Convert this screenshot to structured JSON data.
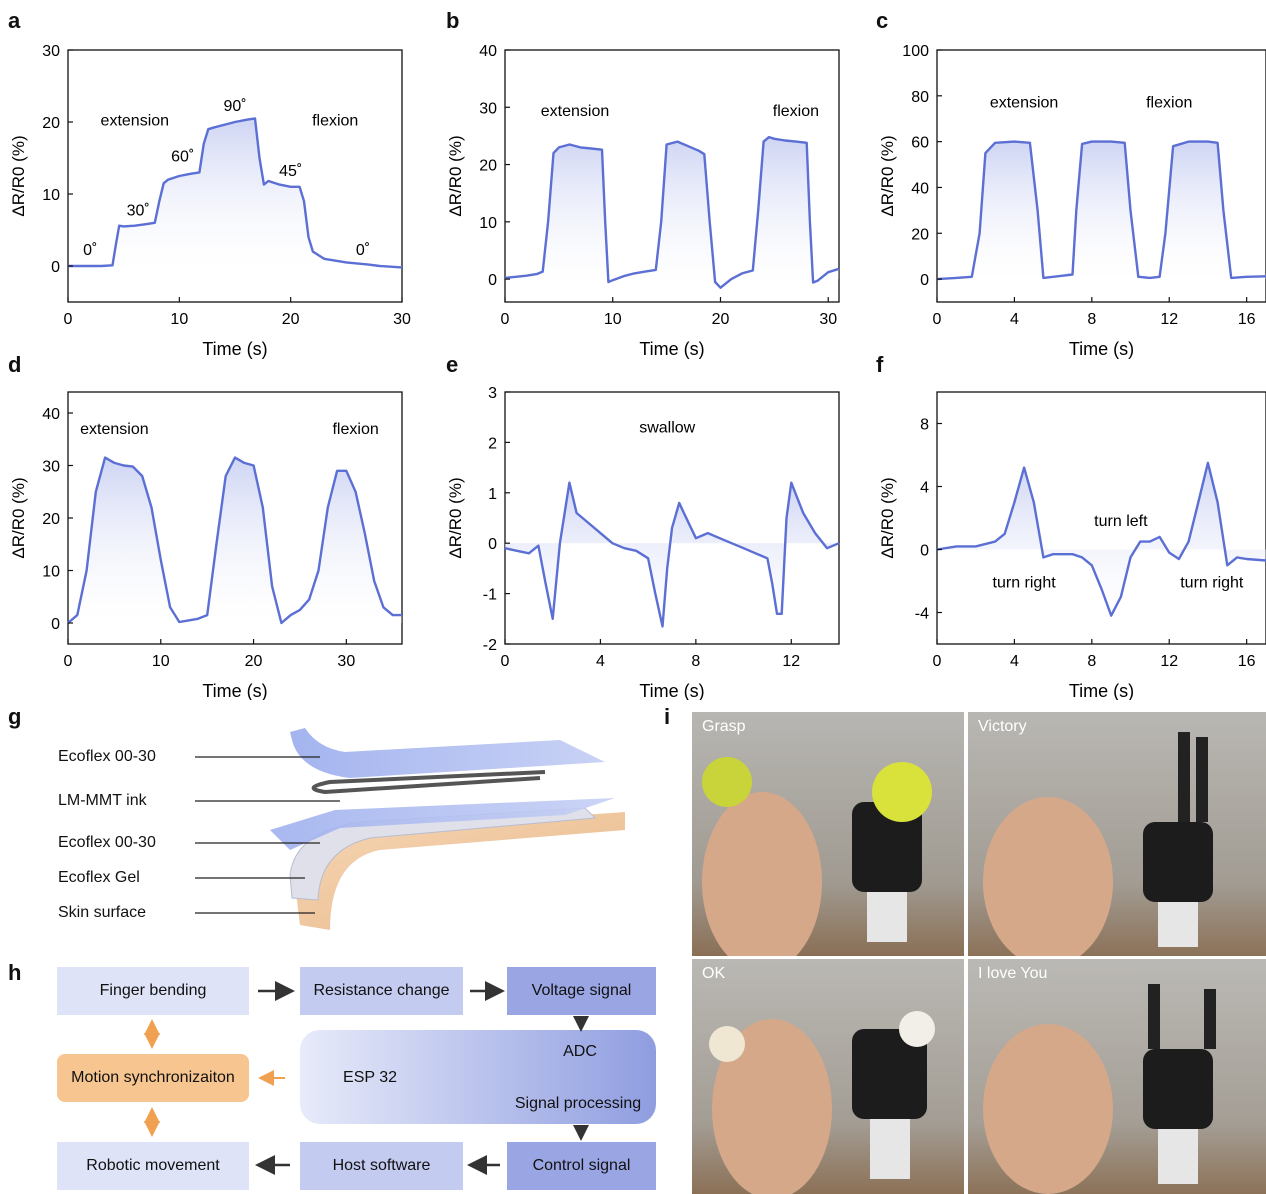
{
  "panel_labels": [
    "a",
    "b",
    "c",
    "d",
    "e",
    "f",
    "g",
    "h",
    "i"
  ],
  "colors": {
    "line": "#5b6fd4",
    "fill": "#c9d0f2",
    "box": "#c7cdee",
    "box_dark": "#8e9be0",
    "orange": "#f7c58f",
    "arrow_orange": "#f0a050"
  },
  "chart_data": [
    {
      "type": "line",
      "panel": "a",
      "xlabel": "Time (s)",
      "ylabel": "ΔR/R0 (%)",
      "xlim": [
        0,
        30
      ],
      "ylim": [
        -5,
        30
      ],
      "xticks": [
        0,
        10,
        20,
        30
      ],
      "yticks": [
        0,
        10,
        20,
        30
      ],
      "x": [
        0,
        1,
        2,
        3,
        4,
        4.3,
        4.6,
        5,
        6,
        7,
        7.8,
        8.2,
        8.6,
        9,
        10,
        11,
        11.8,
        12.2,
        12.6,
        13,
        14,
        15,
        16,
        16.8,
        17.2,
        17.6,
        18,
        19,
        20,
        20.8,
        21.2,
        21.6,
        22,
        23,
        25,
        27,
        28,
        30
      ],
      "y": [
        0,
        0,
        0,
        0,
        0.1,
        3,
        5.6,
        5.5,
        5.6,
        5.8,
        6,
        9,
        11.5,
        12,
        12.5,
        12.8,
        13,
        17,
        19,
        19.2,
        19.6,
        20,
        20.3,
        20.5,
        15,
        11.3,
        11.8,
        11.3,
        11,
        11,
        9,
        4,
        2,
        1,
        0.5,
        0.2,
        0,
        -0.2
      ],
      "annotations": [
        {
          "text": "0˚",
          "x": 2,
          "y": 1.5
        },
        {
          "text": "30˚",
          "x": 6.3,
          "y": 7
        },
        {
          "text": "60˚",
          "x": 10.3,
          "y": 14.5
        },
        {
          "text": "90˚",
          "x": 15,
          "y": 21.5
        },
        {
          "text": "45˚",
          "x": 20,
          "y": 12.5
        },
        {
          "text": "0˚",
          "x": 26.5,
          "y": 1.5
        },
        {
          "text": "extension",
          "x": 6,
          "y": 19.5
        },
        {
          "text": "flexion",
          "x": 24,
          "y": 19.5
        }
      ]
    },
    {
      "type": "line",
      "panel": "b",
      "xlabel": "Time (s)",
      "ylabel": "ΔR/R0 (%)",
      "xlim": [
        0,
        31
      ],
      "ylim": [
        -4,
        40
      ],
      "xticks": [
        0,
        10,
        20,
        30
      ],
      "yticks": [
        0,
        10,
        20,
        30,
        40
      ],
      "x": [
        0,
        1,
        2,
        3,
        3.5,
        4,
        4.5,
        5,
        6,
        7,
        8,
        9,
        9.3,
        9.6,
        10,
        11,
        12,
        13,
        14,
        14.5,
        15,
        16,
        17,
        18,
        18.5,
        19,
        19.5,
        20,
        21,
        22,
        23,
        23.5,
        24,
        24.5,
        25,
        26,
        27,
        28,
        28.3,
        28.6,
        29,
        30,
        31
      ],
      "y": [
        0.2,
        0.4,
        0.6,
        0.9,
        1.3,
        10,
        22,
        23,
        23.5,
        23,
        22.8,
        22.6,
        10,
        -0.5,
        -0.2,
        0.5,
        1,
        1.3,
        1.6,
        10,
        23.5,
        24,
        23.2,
        22.4,
        21.8,
        10,
        -0.5,
        -1.5,
        0,
        1,
        1.5,
        12,
        24,
        24.8,
        24.5,
        24.2,
        24,
        23.8,
        10,
        -0.6,
        -0.3,
        1.2,
        1.8
      ],
      "annotations": [
        {
          "text": "extension",
          "x": 6.5,
          "y": 28.5
        },
        {
          "text": "flexion",
          "x": 27,
          "y": 28.5
        }
      ]
    },
    {
      "type": "line",
      "panel": "c",
      "xlabel": "Time (s)",
      "ylabel": "ΔR/R0 (%)",
      "xlim": [
        0,
        17
      ],
      "ylim": [
        -10,
        100
      ],
      "xticks": [
        0,
        4,
        8,
        12,
        16
      ],
      "yticks": [
        0,
        20,
        40,
        60,
        80,
        100
      ],
      "x": [
        0,
        1,
        1.8,
        2.2,
        2.5,
        3,
        4,
        4.8,
        5.2,
        5.5,
        6,
        6.5,
        7,
        7.2,
        7.5,
        8,
        9,
        9.7,
        10,
        10.4,
        11,
        11.5,
        11.8,
        12.2,
        13,
        14,
        14.5,
        14.8,
        15.2,
        16,
        17
      ],
      "y": [
        0,
        0.5,
        1,
        20,
        55,
        59.5,
        60,
        59.5,
        30,
        0.5,
        1,
        1.5,
        2,
        30,
        59,
        60,
        60,
        59.5,
        30,
        1,
        0.5,
        1,
        20,
        58,
        60,
        60,
        59.5,
        30,
        0.5,
        1,
        1.2
      ],
      "annotations": [
        {
          "text": "extension",
          "x": 4.5,
          "y": 75
        },
        {
          "text": "flexion",
          "x": 12,
          "y": 75
        }
      ]
    },
    {
      "type": "line",
      "panel": "d",
      "xlabel": "Time (s)",
      "ylabel": "ΔR/R0 (%)",
      "xlim": [
        0,
        36
      ],
      "ylim": [
        -4,
        44
      ],
      "xticks": [
        0,
        10,
        20,
        30
      ],
      "yticks": [
        0,
        10,
        20,
        30,
        40
      ],
      "x": [
        0,
        1,
        2,
        3,
        4,
        5,
        6,
        7,
        8,
        9,
        10,
        11,
        12,
        13,
        14,
        15,
        16,
        17,
        18,
        19,
        20,
        21,
        22,
        23,
        24,
        25,
        26,
        27,
        28,
        29,
        30,
        31,
        32,
        33,
        34,
        35,
        36
      ],
      "y": [
        0,
        1.5,
        10,
        25,
        31.5,
        30.5,
        30,
        29.8,
        28,
        22,
        12,
        3,
        0.2,
        0.5,
        0.8,
        1.5,
        15,
        28,
        31.5,
        30.5,
        30,
        22,
        7,
        0,
        1.5,
        2.5,
        4.5,
        10,
        22,
        29,
        29,
        25,
        17,
        8,
        3,
        1.5,
        1.5
      ],
      "annotations": [
        {
          "text": "extension",
          "x": 5,
          "y": 36
        },
        {
          "text": "flexion",
          "x": 31,
          "y": 36
        }
      ]
    },
    {
      "type": "line",
      "panel": "e",
      "xlabel": "Time (s)",
      "ylabel": "ΔR/R0 (%)",
      "xlim": [
        0,
        14
      ],
      "ylim": [
        -2,
        3
      ],
      "xticks": [
        0,
        4,
        8,
        12
      ],
      "yticks": [
        -2,
        -1,
        0,
        1,
        2,
        3
      ],
      "x": [
        0,
        0.5,
        1,
        1.4,
        1.7,
        2,
        2.3,
        2.7,
        3,
        3.5,
        4,
        4.5,
        5,
        5.5,
        6,
        6.3,
        6.6,
        6.8,
        7,
        7.3,
        7.5,
        8,
        8.5,
        9,
        9.5,
        10,
        10.5,
        11,
        11.2,
        11.4,
        11.6,
        11.8,
        12,
        12.5,
        13,
        13.5,
        14
      ],
      "y": [
        -0.1,
        -0.15,
        -0.2,
        -0.05,
        -0.8,
        -1.5,
        0,
        1.2,
        0.6,
        0.4,
        0.2,
        0,
        -0.1,
        -0.15,
        -0.3,
        -1,
        -1.65,
        -0.5,
        0.3,
        0.8,
        0.6,
        0.1,
        0.2,
        0.1,
        0,
        -0.1,
        -0.2,
        -0.3,
        -0.8,
        -1.4,
        -1.4,
        0.5,
        1.2,
        0.6,
        0.2,
        -0.1,
        0
      ],
      "annotations": [
        {
          "text": "swallow",
          "x": 6.8,
          "y": 2.2
        }
      ]
    },
    {
      "type": "line",
      "panel": "f",
      "xlabel": "Time (s)",
      "ylabel": "ΔR/R0 (%)",
      "xlim": [
        0,
        17
      ],
      "ylim": [
        -6,
        10
      ],
      "xticks": [
        0,
        4,
        8,
        12,
        16
      ],
      "yticks": [
        -4,
        0,
        4,
        8
      ],
      "x": [
        0,
        1,
        2,
        3,
        3.5,
        4,
        4.5,
        5,
        5.5,
        6,
        7,
        7.5,
        8,
        8.5,
        9,
        9.5,
        10,
        10.5,
        11,
        11.5,
        12,
        12.5,
        13,
        13.5,
        14,
        14.5,
        15,
        15.5,
        16,
        17
      ],
      "y": [
        0,
        0.2,
        0.2,
        0.5,
        1,
        3,
        5.2,
        3,
        -0.5,
        -0.3,
        -0.3,
        -0.5,
        -1,
        -2.5,
        -4.2,
        -3,
        -0.5,
        0.5,
        0.5,
        0.8,
        -0.2,
        -0.6,
        0.5,
        3,
        5.5,
        3,
        -1,
        -0.5,
        -0.6,
        -0.7
      ],
      "annotations": [
        {
          "text": "turn right",
          "x": 4.5,
          "y": -2.4
        },
        {
          "text": "turn left",
          "x": 9.5,
          "y": 1.5
        },
        {
          "text": "turn right",
          "x": 14.2,
          "y": -2.4
        }
      ]
    }
  ],
  "layers": [
    "Ecoflex 00-30",
    "LM-MMT ink",
    "Ecoflex 00-30",
    "Ecoflex Gel",
    "Skin surface"
  ],
  "flow": {
    "finger": "Finger bending",
    "resistance": "Resistance change",
    "voltage": "Voltage signal",
    "adc": "ADC",
    "esp": "ESP 32",
    "signal_proc": "Signal processing",
    "motion": "Motion synchronizaiton",
    "robotic": "Robotic movement",
    "host": "Host software",
    "control": "Control signal"
  },
  "photos": [
    "Grasp",
    "Victory",
    "OK",
    "I love You"
  ]
}
